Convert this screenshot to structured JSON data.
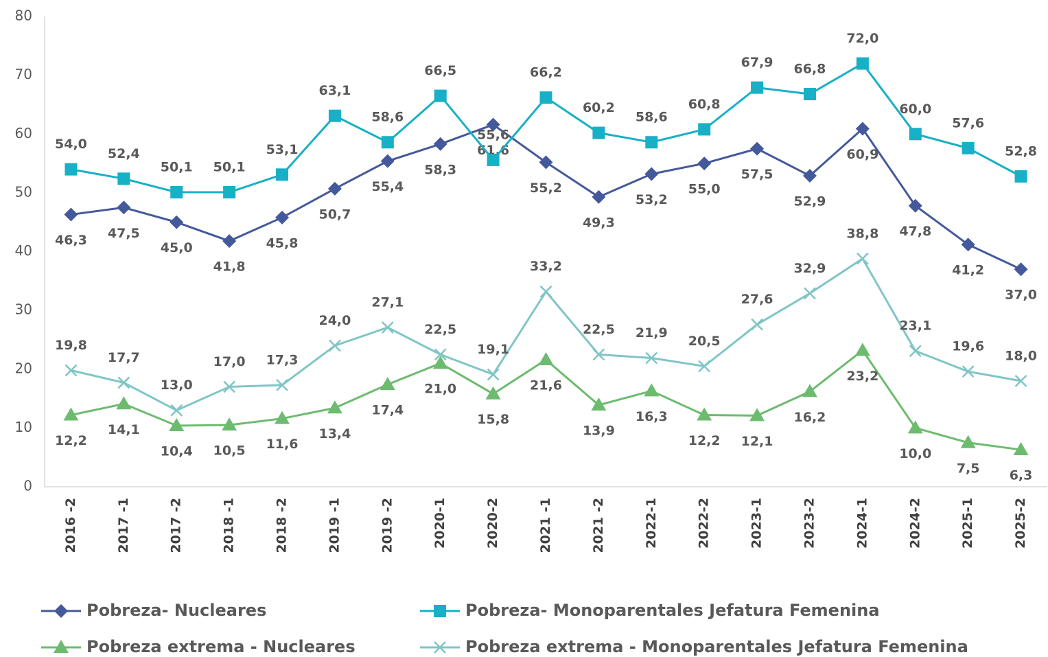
{
  "chart_data": {
    "type": "line",
    "categories": [
      "2016 -2",
      "2017 -1",
      "2017 -2",
      "2018 -1",
      "2018 -2",
      "2019 -1",
      "2019 -2",
      "2020-1",
      "2020-2",
      "2021 -1",
      "2021 -2",
      "2022-1",
      "2022-2",
      "2023-1",
      "2023-2",
      "2024-1",
      "2024-2",
      "2025-1",
      "2025-2"
    ],
    "series": [
      {
        "name": "Pobreza- Nucleares",
        "color": "#44599b",
        "marker": "diamond",
        "label_position": "below",
        "values": [
          46.3,
          47.5,
          45.0,
          41.8,
          45.8,
          50.7,
          55.4,
          58.3,
          61.6,
          55.2,
          49.3,
          53.2,
          55.0,
          57.5,
          52.9,
          60.9,
          47.8,
          41.2,
          37.0
        ],
        "value_labels": [
          "46,3",
          "47,5",
          "45,0",
          "41,8",
          "45,8",
          "50,7",
          "55,4",
          "58,3",
          "61,6",
          "55,2",
          "49,3",
          "53,2",
          "55,0",
          "57,5",
          "52,9",
          "60,9",
          "47,8",
          "41,2",
          "37,0"
        ]
      },
      {
        "name": "Pobreza- Monoparentales Jefatura Femenina",
        "color": "#17b0c6",
        "marker": "square",
        "label_position": "above",
        "values": [
          54.0,
          52.4,
          50.1,
          50.1,
          53.1,
          63.1,
          58.6,
          66.5,
          55.6,
          66.2,
          60.2,
          58.6,
          60.8,
          67.9,
          66.8,
          72.0,
          60.0,
          57.6,
          52.8
        ],
        "value_labels": [
          "54,0",
          "52,4",
          "50,1",
          "50,1",
          "53,1",
          "63,1",
          "58,6",
          "66,5",
          "55,6",
          "66,2",
          "60,2",
          "58,6",
          "60,8",
          "67,9",
          "66,8",
          "72,0",
          "60,0",
          "57,6",
          "52,8"
        ]
      },
      {
        "name": "Pobreza extrema - Nucleares",
        "color": "#6dbb6f",
        "marker": "triangle",
        "label_position": "below",
        "values": [
          12.2,
          14.1,
          10.4,
          10.5,
          11.6,
          13.4,
          17.4,
          21.0,
          15.8,
          21.6,
          13.9,
          16.3,
          12.2,
          12.1,
          16.2,
          23.2,
          10.0,
          7.5,
          6.3
        ],
        "value_labels": [
          "12,2",
          "14,1",
          "10,4",
          "10,5",
          "11,6",
          "13,4",
          "17,4",
          "21,0",
          "15,8",
          "21,6",
          "13,9",
          "16,3",
          "12,2",
          "12,1",
          "16,2",
          "23,2",
          "10,0",
          "7,5",
          "6,3"
        ]
      },
      {
        "name": "Pobreza extrema - Monoparentales Jefatura Femenina",
        "color": "#80c5c6",
        "marker": "x",
        "label_position": "above",
        "values": [
          19.8,
          17.7,
          13.0,
          17.0,
          17.3,
          24.0,
          27.1,
          22.5,
          19.1,
          33.2,
          22.5,
          21.9,
          20.5,
          27.6,
          32.9,
          38.8,
          23.1,
          19.6,
          18.0
        ],
        "value_labels": [
          "19,8",
          "17,7",
          "13,0",
          "17,0",
          "17,3",
          "24,0",
          "27,1",
          "22,5",
          "19,1",
          "33,2",
          "22,5",
          "21,9",
          "20,5",
          "27,6",
          "32,9",
          "38,8",
          "23,1",
          "19,6",
          "18,0"
        ]
      }
    ],
    "ylim": [
      0,
      80
    ],
    "yticks": [
      0,
      10,
      20,
      30,
      40,
      50,
      60,
      70,
      80
    ],
    "grid": false,
    "legend": "bottom"
  }
}
